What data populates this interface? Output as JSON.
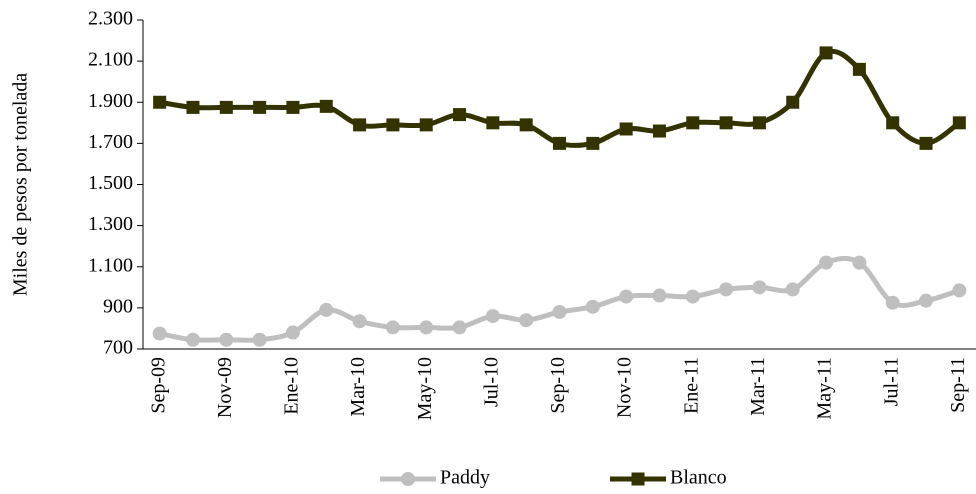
{
  "chart_data": {
    "type": "line",
    "y_label": "Miles de pesos por tonelada",
    "categories": [
      "Sep-09",
      null,
      "Nov-09",
      null,
      "Ene-10",
      null,
      "Mar-10",
      null,
      "May-10",
      null,
      "Jul-10",
      null,
      "Sep-10",
      null,
      "Nov-10",
      null,
      "Ene-11",
      null,
      "Mar-11",
      null,
      "May-11",
      null,
      "Jul-11",
      null,
      "Sep-11"
    ],
    "series": [
      {
        "name": "Paddy",
        "color": "#bfbfbf",
        "marker": "circle",
        "values": [
          775,
          745,
          745,
          745,
          780,
          890,
          835,
          805,
          805,
          805,
          860,
          840,
          880,
          905,
          955,
          960,
          955,
          990,
          1000,
          990,
          1120,
          1120,
          925,
          935,
          985
        ]
      },
      {
        "name": "Blanco",
        "color": "#333300",
        "marker": "square",
        "values": [
          1900,
          1875,
          1875,
          1875,
          1875,
          1880,
          1790,
          1790,
          1790,
          1840,
          1800,
          1790,
          1700,
          1700,
          1770,
          1760,
          1800,
          1800,
          1800,
          1900,
          2140,
          2060,
          1800,
          1700,
          1800
        ]
      }
    ],
    "ylim": [
      700,
      2300
    ],
    "yticks": [
      700,
      900,
      {
        "value": 1100,
        "label": "1.100"
      },
      {
        "value": 1300,
        "label": "1.300"
      },
      {
        "value": 1500,
        "label": "1.500"
      },
      {
        "value": 1700,
        "label": "1.700"
      },
      {
        "value": 1900,
        "label": "1.900"
      },
      {
        "value": 2100,
        "label": "2.100"
      },
      {
        "value": 2300,
        "label": "2.300"
      }
    ],
    "legend": "bottom"
  }
}
